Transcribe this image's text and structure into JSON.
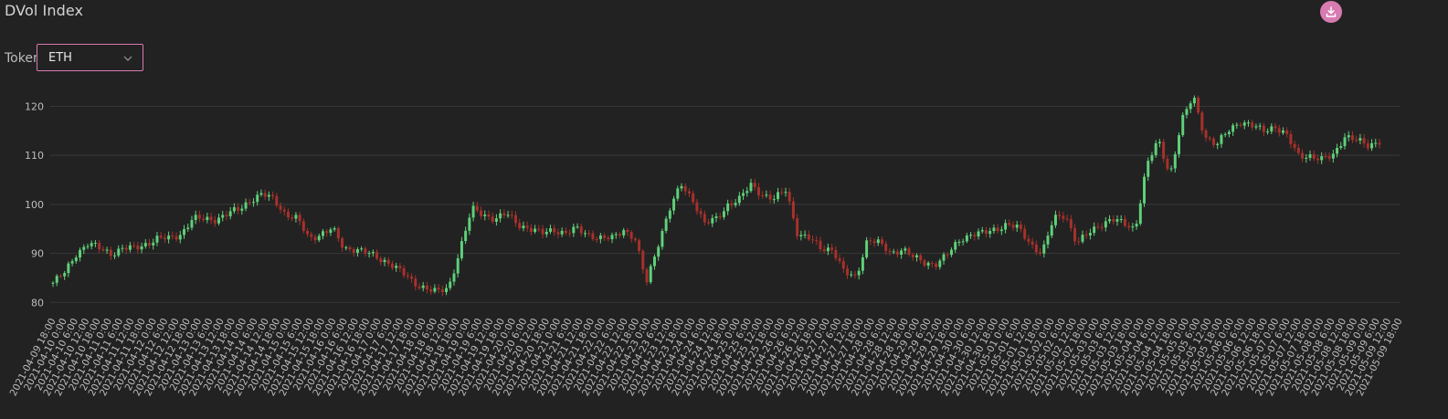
{
  "header": {
    "title": "DVol Index",
    "download_icon": "download-icon"
  },
  "filter": {
    "label": "Token",
    "selected": "ETH",
    "chevron_icon": "chevron-down-icon"
  },
  "colors": {
    "up": "#5fd17a",
    "down": "#a8312b",
    "grid": "#383838",
    "accent": "#d77bb0",
    "background": "#222222"
  },
  "chart_data": {
    "type": "candlestick",
    "title": "DVol Index",
    "ylim": [
      78,
      124
    ],
    "yticks": [
      80,
      90,
      100,
      110,
      120
    ],
    "x_tick_labels": [
      "2021-04-09 18:00",
      "2021-04-10 0:00",
      "2021-04-10 6:00",
      "2021-04-10 12:00",
      "2021-04-10 18:00",
      "2021-04-11 0:00",
      "2021-04-11 6:00",
      "2021-04-11 12:00",
      "2021-04-11 18:00",
      "2021-04-12 0:00",
      "2021-04-12 6:00",
      "2021-04-12 12:00",
      "2021-04-12 18:00",
      "2021-04-13 0:00",
      "2021-04-13 6:00",
      "2021-04-13 12:00",
      "2021-04-13 18:00",
      "2021-04-14 0:00",
      "2021-04-14 6:00",
      "2021-04-14 12:00",
      "2021-04-14 18:00",
      "2021-04-15 0:00",
      "2021-04-15 6:00",
      "2021-04-15 12:00",
      "2021-04-15 18:00",
      "2021-04-16 0:00",
      "2021-04-16 6:00",
      "2021-04-16 12:00",
      "2021-04-16 18:00",
      "2021-04-17 0:00",
      "2021-04-17 6:00",
      "2021-04-17 12:00",
      "2021-04-17 18:00",
      "2021-04-18 0:00",
      "2021-04-18 6:00",
      "2021-04-18 12:00",
      "2021-04-18 18:00",
      "2021-04-19 0:00",
      "2021-04-19 6:00",
      "2021-04-19 12:00",
      "2021-04-19 18:00",
      "2021-04-20 0:00",
      "2021-04-20 6:00",
      "2021-04-20 12:00",
      "2021-04-20 18:00",
      "2021-04-21 0:00",
      "2021-04-21 6:00",
      "2021-04-21 12:00",
      "2021-04-21 18:00",
      "2021-04-22 0:00",
      "2021-04-22 6:00",
      "2021-04-22 12:00",
      "2021-04-22 18:00",
      "2021-04-23 0:00",
      "2021-04-23 6:00",
      "2021-04-23 12:00",
      "2021-04-23 18:00",
      "2021-04-24 0:00",
      "2021-04-24 6:00",
      "2021-04-24 12:00",
      "2021-04-24 18:00",
      "2021-04-25 0:00",
      "2021-04-25 6:00",
      "2021-04-25 12:00",
      "2021-04-25 18:00",
      "2021-04-26 0:00",
      "2021-04-26 6:00",
      "2021-04-26 12:00",
      "2021-04-26 18:00",
      "2021-04-27 0:00",
      "2021-04-27 6:00",
      "2021-04-27 12:00",
      "2021-04-27 18:00",
      "2021-04-28 0:00",
      "2021-04-28 6:00",
      "2021-04-28 12:00",
      "2021-04-28 18:00",
      "2021-04-29 0:00",
      "2021-04-29 6:00",
      "2021-04-29 12:00",
      "2021-04-29 18:00",
      "2021-04-30 0:00",
      "2021-04-30 6:00",
      "2021-04-30 12:00",
      "2021-04-30 18:00",
      "2021-05-01 0:00",
      "2021-05-01 6:00",
      "2021-05-01 12:00",
      "2021-05-01 18:00",
      "2021-05-02 0:00",
      "2021-05-02 6:00",
      "2021-05-02 12:00",
      "2021-05-02 18:00",
      "2021-05-03 0:00",
      "2021-05-03 6:00",
      "2021-05-03 12:00",
      "2021-05-03 18:00",
      "2021-05-04 0:00",
      "2021-05-04 6:00",
      "2021-05-04 12:00",
      "2021-05-04 18:00",
      "2021-05-05 0:00",
      "2021-05-05 6:00",
      "2021-05-05 12:00",
      "2021-05-05 18:00",
      "2021-05-06 0:00",
      "2021-05-06 6:00",
      "2021-05-06 12:00",
      "2021-05-06 18:00",
      "2021-05-07 0:00",
      "2021-05-07 6:00",
      "2021-05-07 12:00",
      "2021-05-07 18:00",
      "2021-05-08 0:00",
      "2021-05-08 6:00",
      "2021-05-08 12:00",
      "2021-05-08 18:00",
      "2021-05-09 0:00",
      "2021-05-09 6:00",
      "2021-05-09 12:00",
      "2021-05-09 18:00"
    ],
    "close_by_period": [
      84,
      86,
      90,
      92,
      91,
      90,
      91,
      91,
      92,
      93,
      93,
      94,
      97,
      97,
      97,
      98,
      99,
      101,
      102,
      101,
      98,
      97,
      93,
      94,
      95,
      91,
      91,
      90,
      89,
      88,
      86,
      84,
      83,
      82,
      83,
      91,
      99,
      98,
      97,
      98,
      96,
      95,
      94,
      95,
      94,
      95,
      94,
      93,
      93,
      95,
      93,
      84,
      92,
      99,
      104,
      101,
      96,
      97,
      100,
      101,
      104,
      102,
      101,
      103,
      94,
      93,
      91,
      91,
      86,
      85,
      93,
      92,
      90,
      91,
      89,
      88,
      88,
      90,
      93,
      94,
      94,
      95,
      96,
      95,
      92,
      90,
      97,
      98,
      92,
      94,
      96,
      97,
      96,
      95,
      108,
      113,
      106,
      117,
      122,
      114,
      112,
      115,
      117,
      116,
      115,
      116,
      114,
      110,
      110,
      109,
      110,
      114,
      113,
      112,
      113
    ],
    "candle_count": 345
  }
}
